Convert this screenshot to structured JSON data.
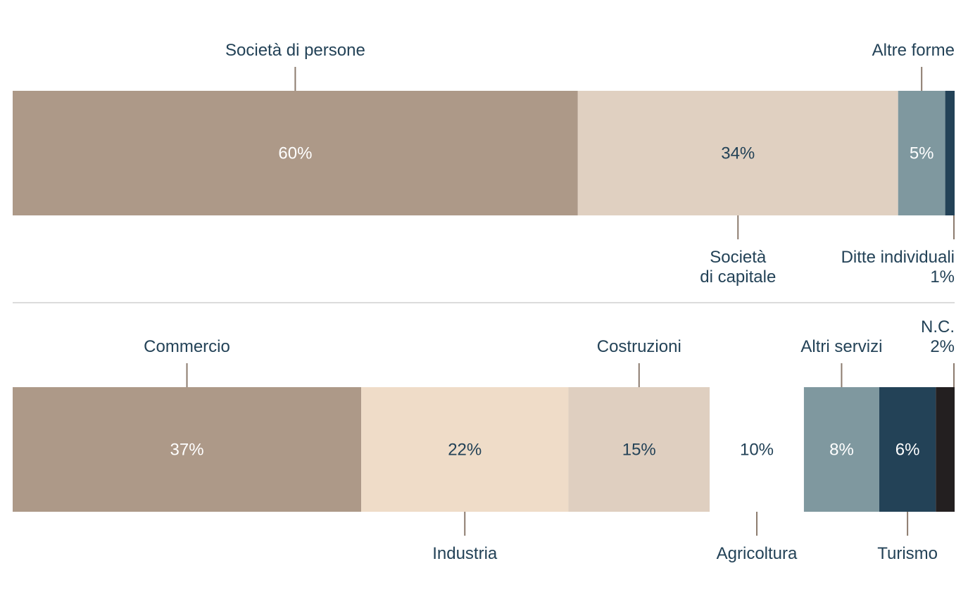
{
  "chart_data": [
    {
      "type": "bar",
      "stacked": true,
      "title": "",
      "unit": "%",
      "segments": [
        {
          "name": "Società di persone",
          "label_lines": [
            "Società di persone"
          ],
          "value": 60,
          "value_label": "60%",
          "color": "#ad9988",
          "text_color": "#ffffff"
        },
        {
          "name": "Società di capitale",
          "label_lines": [
            "Società",
            "di capitale"
          ],
          "value": 34,
          "value_label": "34%",
          "color": "#e0d0c1",
          "text_color": "#234257"
        },
        {
          "name": "Altre forme",
          "label_lines": [
            "Altre forme"
          ],
          "value": 5,
          "value_label": "5%",
          "color": "#7f989f",
          "text_color": "#ffffff"
        },
        {
          "name": "Ditte individuali",
          "label_lines": [
            "Ditte individuali",
            "1%"
          ],
          "value": 1,
          "value_label": "",
          "color": "#234257",
          "text_color": "#ffffff"
        }
      ]
    },
    {
      "type": "bar",
      "stacked": true,
      "title": "",
      "unit": "%",
      "segments": [
        {
          "name": "Commercio",
          "label_lines": [
            "Commercio"
          ],
          "value": 37,
          "value_label": "37%",
          "color": "#ad9988",
          "text_color": "#ffffff"
        },
        {
          "name": "Industria",
          "label_lines": [
            "Industria"
          ],
          "value": 22,
          "value_label": "22%",
          "color": "#efdcc8",
          "text_color": "#234257"
        },
        {
          "name": "Costruzioni",
          "label_lines": [
            "Costruzioni"
          ],
          "value": 15,
          "value_label": "15%",
          "color": "#dfcfc0",
          "text_color": "#234257"
        },
        {
          "name": "Agricoltura",
          "label_lines": [
            "Agricoltura"
          ],
          "value": 10,
          "value_label": "10%",
          "color": "#ffffff",
          "text_color": "#234257"
        },
        {
          "name": "Altri servizi",
          "label_lines": [
            "Altri servizi"
          ],
          "value": 8,
          "value_label": "8%",
          "color": "#7f989f",
          "text_color": "#ffffff"
        },
        {
          "name": "Turismo",
          "label_lines": [
            "Turismo"
          ],
          "value": 6,
          "value_label": "6%",
          "color": "#234257",
          "text_color": "#ffffff"
        },
        {
          "name": "N.C.",
          "label_lines": [
            "N.C.",
            "2%"
          ],
          "value": 2,
          "value_label": "",
          "color": "#231f20",
          "text_color": "#ffffff"
        }
      ]
    }
  ]
}
